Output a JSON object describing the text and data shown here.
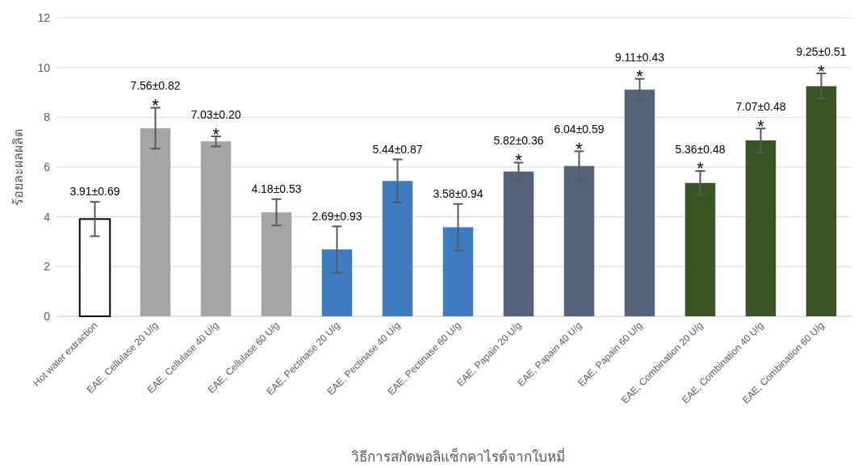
{
  "chart_data": {
    "type": "bar",
    "xlabel": "วิธีการสกัดพอลิแซ็กคาไรด์จากใบหมี่",
    "ylabel": "ร้อยละผลผลิต",
    "categories": [
      "Hot water extraction",
      "EAE, Cellulase 20 U/g",
      "EAE, Cellulase 40 U/g",
      "EAE, Cellulase 60 U/g",
      "EAE, Pectinase 20 U/g",
      "EAE, Pectinase 40 U/g",
      "EAE, Pectinase 60 U/g",
      "EAE, Papain 20 U/g",
      "EAE, Papain 40 U/g",
      "EAE, Papain 60 U/g",
      "EAE, Combination 20 U/g",
      "EAE, Combination 40 U/g",
      "EAE, Combination 60 U/g"
    ],
    "values": [
      3.91,
      7.56,
      7.03,
      4.18,
      2.69,
      5.44,
      3.58,
      5.82,
      6.04,
      9.11,
      5.36,
      7.07,
      9.25
    ],
    "errors": [
      0.69,
      0.82,
      0.2,
      0.53,
      0.93,
      0.87,
      0.94,
      0.36,
      0.59,
      0.43,
      0.48,
      0.48,
      0.51
    ],
    "value_labels": [
      "3.91±0.69",
      "7.56±0.82",
      "7.03±0.20",
      "4.18±0.53",
      "2.69±0.93",
      "5.44±0.87",
      "3.58±0.94",
      "5.82±0.36",
      "6.04±0.59",
      "9.11±0.43",
      "5.36±0.48",
      "7.07±0.48",
      "9.25±0.51"
    ],
    "colors": [
      "#ffffff",
      "#a5a5a5",
      "#a5a5a5",
      "#a5a5a5",
      "#3d7dbf",
      "#3d7dbf",
      "#3d7dbf",
      "#52637a",
      "#52637a",
      "#52637a",
      "#375623",
      "#375623",
      "#375623"
    ],
    "annotations": [
      {
        "text": "*",
        "x": "EAE, Cellulase 20 U/g",
        "y": 7.56
      },
      {
        "text": "*",
        "x": "EAE, Cellulase 40 U/g",
        "y": 7.03
      },
      {
        "text": "*",
        "x": "EAE, Papain 20 U/g",
        "y": 5.82
      },
      {
        "text": "*",
        "x": "EAE, Papain 40 U/g",
        "y": 6.04
      },
      {
        "text": "*",
        "x": "EAE, Papain 60 U/g",
        "y": 9.11
      },
      {
        "text": "*",
        "x": "EAE, Combination 20 U/g",
        "y": 5.36
      },
      {
        "text": "*",
        "x": "EAE, Combination 40 U/g",
        "y": 7.07
      },
      {
        "text": "*",
        "x": "EAE, Combination 60 U/g",
        "y": 9.25
      }
    ],
    "ylim": [
      0,
      12
    ],
    "yticks": [
      0,
      2,
      4,
      6,
      8,
      10,
      12
    ],
    "grid": "y"
  }
}
